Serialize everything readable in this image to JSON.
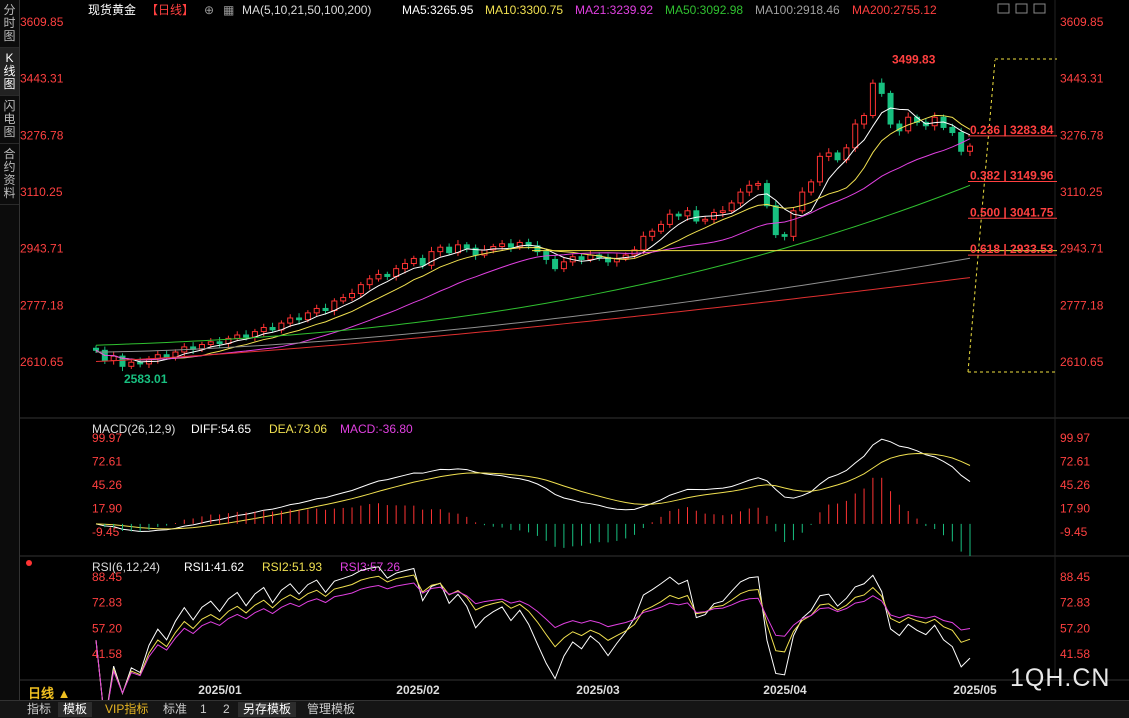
{
  "sidebar": {
    "items": [
      {
        "label": "分时图",
        "active": false
      },
      {
        "label": "K线图",
        "active": true
      },
      {
        "label": "闪电图",
        "active": false
      },
      {
        "label": "合约资料",
        "active": false
      }
    ]
  },
  "header": {
    "symbol": "现货黄金",
    "period": "【日线】",
    "ma_title": "MA(5,10,21,50,100,200)",
    "ma5": "MA5:3265.95",
    "ma10": "MA10:3300.75",
    "ma21": "MA21:3239.92",
    "ma50": "MA50:3092.98",
    "ma100": "MA100:2918.46",
    "ma200": "MA200:2755.12"
  },
  "macd_header": {
    "title": "MACD(26,12,9)",
    "diff": "DIFF:54.65",
    "dea": "DEA:73.06",
    "macd": "MACD:-36.80"
  },
  "rsi_header": {
    "title": "RSI(6,12,24)",
    "rsi1": "RSI1:41.62",
    "rsi2": "RSI2:51.93",
    "rsi3": "RSI3:57.26"
  },
  "colors": {
    "up": "#ff3333",
    "down": "#18c080",
    "ma5": "#ffffff",
    "ma10": "#f0e050",
    "ma21": "#e040e0",
    "ma50": "#30c030",
    "ma100": "#909090",
    "ma200": "#e03030",
    "fib": "#f0e040",
    "axis_text": "#ff4040"
  },
  "period_selector": {
    "label": "日线",
    "icon": "triangle-up-icon"
  },
  "bottom_tabs": [
    {
      "label": "指标",
      "active": false
    },
    {
      "label": "模板",
      "active": true
    },
    {
      "label": "VIP指标",
      "active": false
    },
    {
      "label": "标准",
      "active": false
    },
    {
      "label": "1",
      "active": false
    },
    {
      "label": "2",
      "active": false
    },
    {
      "label": "另存模板",
      "active": true
    },
    {
      "label": "管理模板",
      "active": false
    }
  ],
  "watermark": "1QH.CN",
  "chart_data": {
    "type": "candlestick",
    "price_axis": {
      "ticks": [
        3609.85,
        3443.31,
        3276.78,
        3110.25,
        2943.71,
        2777.18,
        2610.65
      ],
      "tick_labels": [
        "3609.85",
        "3443.31",
        "3276.78",
        "3110.25",
        "2943.71",
        "2777.18",
        "2610.65"
      ],
      "range": [
        2610.65,
        3609.85
      ]
    },
    "x_axis": {
      "labels": [
        "2025/01",
        "2025/02",
        "2025/03",
        "2025/04",
        "2025/05"
      ]
    },
    "annotations": {
      "high": "3499.83",
      "low": "2583.01"
    },
    "fibonacci": [
      {
        "ratio": "0.236",
        "price": "3283.84",
        "label": "0.236 | 3283.84"
      },
      {
        "ratio": "0.382",
        "price": "3149.96",
        "label": "0.382 | 3149.96"
      },
      {
        "ratio": "0.500",
        "price": "3041.75",
        "label": "0.500 | 3041.75"
      },
      {
        "ratio": "0.618",
        "price": "2933.53",
        "label": "0.618 | 2933.53"
      }
    ],
    "closes": [
      2645,
      2615,
      2628,
      2598,
      2610,
      2605,
      2620,
      2632,
      2625,
      2640,
      2655,
      2648,
      2662,
      2670,
      2665,
      2680,
      2690,
      2684,
      2700,
      2712,
      2705,
      2725,
      2740,
      2735,
      2755,
      2768,
      2762,
      2790,
      2800,
      2812,
      2838,
      2855,
      2868,
      2862,
      2885,
      2900,
      2915,
      2895,
      2935,
      2948,
      2932,
      2955,
      2945,
      2925,
      2940,
      2950,
      2958,
      2948,
      2962,
      2952,
      2935,
      2912,
      2885,
      2905,
      2920,
      2912,
      2925,
      2918,
      2905,
      2915,
      2925,
      2940,
      2980,
      2995,
      3015,
      3045,
      3040,
      3055,
      3025,
      3030,
      3050,
      3055,
      3078,
      3110,
      3130,
      3135,
      3070,
      2985,
      2980,
      3055,
      3110,
      3140,
      3215,
      3225,
      3205,
      3240,
      3310,
      3335,
      3430,
      3400,
      3310,
      3290,
      3330,
      3315,
      3305,
      3330,
      3300,
      3285,
      3230,
      3245
    ],
    "rsi_axis": {
      "tick_labels": [
        "88.45",
        "72.83",
        "57.20",
        "41.58"
      ]
    },
    "macd_axis": {
      "tick_labels": [
        "99.97",
        "72.61",
        "45.26",
        "17.90",
        "-9.45"
      ]
    }
  }
}
